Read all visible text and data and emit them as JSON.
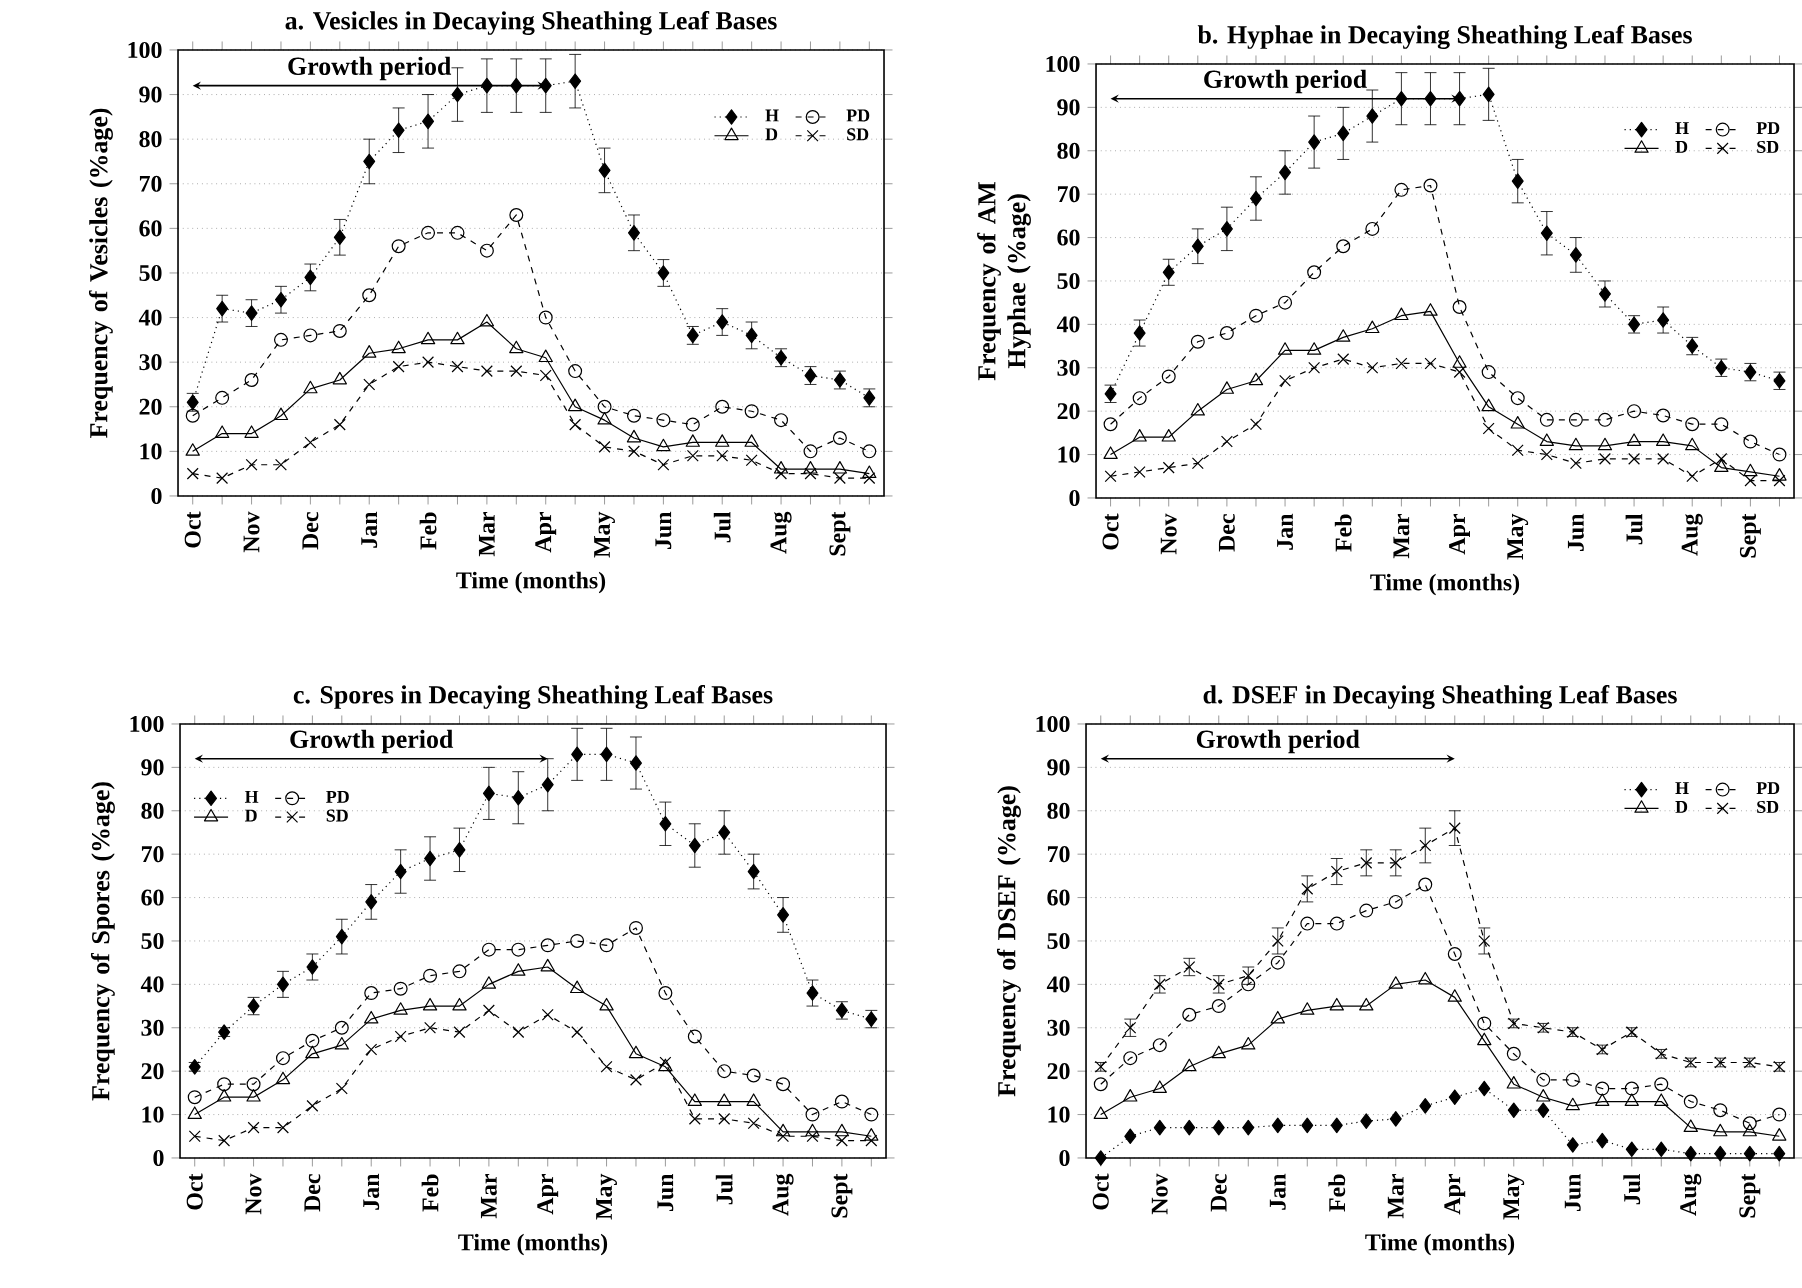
{
  "chart_data": [
    {
      "type": "line",
      "title": "a. Vesicles in Decaying Sheathing Leaf Bases",
      "xlabel": "Time (months)",
      "ylabel": "Frequency of Vesicles (%age)",
      "categories": [
        "Oct",
        null,
        "Nov",
        null,
        "Dec",
        null,
        "Jan",
        null,
        "Feb",
        null,
        "Mar",
        null,
        "Apr",
        null,
        "May",
        null,
        "Jun",
        null,
        "Jul",
        null,
        "Aug",
        null,
        "Sept",
        null
      ],
      "ylim": [
        0,
        100
      ],
      "yticks": [
        0,
        10,
        20,
        30,
        40,
        50,
        60,
        70,
        80,
        90,
        100
      ],
      "grid": "y",
      "legend": "top right",
      "annotations": [
        "Growth period"
      ],
      "series": [
        {
          "name": "H",
          "color": "#000000",
          "marker": "diamond",
          "line_style": "dotted",
          "values": [
            21,
            42,
            41,
            44,
            49,
            58,
            75,
            82,
            84,
            90,
            92,
            92,
            92,
            93,
            73,
            59,
            50,
            36,
            39,
            36,
            31,
            27,
            26,
            22
          ],
          "errors": [
            2,
            3,
            3,
            3,
            3,
            4,
            5,
            5,
            6,
            6,
            6,
            6,
            6,
            6,
            5,
            4,
            3,
            2,
            3,
            3,
            2,
            2,
            2,
            2
          ]
        },
        {
          "name": "PD",
          "color": "#000000",
          "marker": "circle",
          "line_style": "dashed",
          "values": [
            18,
            22,
            26,
            35,
            36,
            37,
            45,
            56,
            59,
            59,
            55,
            63,
            40,
            28,
            20,
            18,
            17,
            16,
            20,
            19,
            17,
            10,
            13,
            10
          ]
        },
        {
          "name": "D",
          "color": "#000000",
          "marker": "triangle",
          "line_style": "solid",
          "values": [
            10,
            14,
            14,
            18,
            24,
            26,
            32,
            33,
            35,
            35,
            39,
            33,
            31,
            20,
            17,
            13,
            11,
            12,
            12,
            12,
            6,
            6,
            6,
            5
          ]
        },
        {
          "name": "SD",
          "color": "#000000",
          "marker": "cross",
          "line_style": "dashed",
          "values": [
            5,
            4,
            7,
            7,
            12,
            16,
            25,
            29,
            30,
            29,
            28,
            28,
            27,
            16,
            11,
            10,
            7,
            9,
            9,
            8,
            5,
            5,
            4,
            4
          ]
        }
      ]
    },
    {
      "type": "line",
      "title": "b. Hyphae in Decaying Sheathing Leaf Bases",
      "xlabel": "Time (months)",
      "ylabel": "Frequency of AM Hyphae (%age)",
      "categories": [
        "Oct",
        null,
        "Nov",
        null,
        "Dec",
        null,
        "Jan",
        null,
        "Feb",
        null,
        "Mar",
        null,
        "Apr",
        null,
        "May",
        null,
        "Jun",
        null,
        "Jul",
        null,
        "Aug",
        null,
        "Sept",
        null
      ],
      "ylim": [
        0,
        100
      ],
      "yticks": [
        0,
        10,
        20,
        30,
        40,
        50,
        60,
        70,
        80,
        90,
        100
      ],
      "grid": "y",
      "legend": "top right",
      "annotations": [
        "Growth period"
      ],
      "series": [
        {
          "name": "H",
          "color": "#000000",
          "marker": "diamond",
          "line_style": "dotted",
          "values": [
            24,
            38,
            52,
            58,
            62,
            69,
            75,
            82,
            84,
            88,
            92,
            92,
            92,
            93,
            73,
            61,
            56,
            47,
            40,
            41,
            35,
            30,
            29,
            27
          ],
          "errors": [
            2,
            3,
            3,
            4,
            5,
            5,
            5,
            6,
            6,
            6,
            6,
            6,
            6,
            6,
            5,
            5,
            4,
            3,
            2,
            3,
            2,
            2,
            2,
            2
          ]
        },
        {
          "name": "PD",
          "color": "#000000",
          "marker": "circle",
          "line_style": "dashed",
          "values": [
            17,
            23,
            28,
            36,
            38,
            42,
            45,
            52,
            58,
            62,
            71,
            72,
            44,
            29,
            23,
            18,
            18,
            18,
            20,
            19,
            17,
            17,
            13,
            10
          ]
        },
        {
          "name": "D",
          "color": "#000000",
          "marker": "triangle",
          "line_style": "solid",
          "values": [
            10,
            14,
            14,
            20,
            25,
            27,
            34,
            34,
            37,
            39,
            42,
            43,
            31,
            21,
            17,
            13,
            12,
            12,
            13,
            13,
            12,
            7,
            6,
            5
          ]
        },
        {
          "name": "SD",
          "color": "#000000",
          "marker": "cross",
          "line_style": "dashed",
          "values": [
            5,
            6,
            7,
            8,
            13,
            17,
            27,
            30,
            32,
            30,
            31,
            31,
            29,
            16,
            11,
            10,
            8,
            9,
            9,
            9,
            5,
            9,
            4,
            4
          ]
        }
      ]
    },
    {
      "type": "line",
      "title": "c. Spores in Decaying Sheathing Leaf Bases",
      "xlabel": "Time (months)",
      "ylabel": "Frequency of Spores (%age)",
      "categories": [
        "Oct",
        null,
        "Nov",
        null,
        "Dec",
        null,
        "Jan",
        null,
        "Feb",
        null,
        "Mar",
        null,
        "Apr",
        null,
        "May",
        null,
        "Jun",
        null,
        "Jul",
        null,
        "Aug",
        null,
        "Sept",
        null
      ],
      "ylim": [
        0,
        100
      ],
      "yticks": [
        0,
        10,
        20,
        30,
        40,
        50,
        60,
        70,
        80,
        90,
        100
      ],
      "grid": "y",
      "legend": "top left",
      "annotations": [
        "Growth period"
      ],
      "series": [
        {
          "name": "H",
          "color": "#000000",
          "marker": "diamond",
          "line_style": "dotted",
          "values": [
            21,
            29,
            35,
            40,
            44,
            51,
            59,
            66,
            69,
            71,
            84,
            83,
            86,
            93,
            93,
            91,
            77,
            72,
            75,
            66,
            56,
            38,
            34,
            32
          ],
          "errors": [
            1,
            1,
            2,
            3,
            3,
            4,
            4,
            5,
            5,
            5,
            6,
            6,
            6,
            6,
            6,
            6,
            5,
            5,
            5,
            4,
            4,
            3,
            2,
            2
          ]
        },
        {
          "name": "PD",
          "color": "#000000",
          "marker": "circle",
          "line_style": "dashed",
          "values": [
            14,
            17,
            17,
            23,
            27,
            30,
            38,
            39,
            42,
            43,
            48,
            48,
            49,
            50,
            49,
            53,
            38,
            28,
            20,
            19,
            17,
            10,
            13,
            10
          ]
        },
        {
          "name": "D",
          "color": "#000000",
          "marker": "triangle",
          "line_style": "solid",
          "values": [
            10,
            14,
            14,
            18,
            24,
            26,
            32,
            34,
            35,
            35,
            40,
            43,
            44,
            39,
            35,
            24,
            21,
            13,
            13,
            13,
            6,
            6,
            6,
            5
          ]
        },
        {
          "name": "SD",
          "color": "#000000",
          "marker": "cross",
          "line_style": "dashed",
          "values": [
            5,
            4,
            7,
            7,
            12,
            16,
            25,
            28,
            30,
            29,
            34,
            29,
            33,
            29,
            21,
            18,
            22,
            9,
            9,
            8,
            5,
            5,
            4,
            4
          ]
        }
      ]
    },
    {
      "type": "line",
      "title": "d. DSEF in Decaying Sheathing Leaf Bases",
      "xlabel": "Time (months)",
      "ylabel": "Frequency of DSEF (%age)",
      "categories": [
        "Oct",
        null,
        "Nov",
        null,
        "Dec",
        null,
        "Jan",
        null,
        "Feb",
        null,
        "Mar",
        null,
        "Apr",
        null,
        "May",
        null,
        "Jun",
        null,
        "Jul",
        null,
        "Aug",
        null,
        "Sept",
        null
      ],
      "ylim": [
        0,
        100
      ],
      "yticks": [
        0,
        10,
        20,
        30,
        40,
        50,
        60,
        70,
        80,
        90,
        100
      ],
      "grid": "y",
      "legend": "top right",
      "annotations": [
        "Growth period"
      ],
      "series": [
        {
          "name": "H",
          "color": "#000000",
          "marker": "diamond",
          "line_style": "dotted",
          "values": [
            0,
            5,
            7,
            7,
            7,
            7,
            7.5,
            7.5,
            7.5,
            8.5,
            9,
            12,
            14,
            16,
            11,
            11,
            3,
            4,
            2,
            2,
            1,
            1,
            1,
            1
          ]
        },
        {
          "name": "PD",
          "color": "#000000",
          "marker": "circle",
          "line_style": "dashed",
          "values": [
            17,
            23,
            26,
            33,
            35,
            40,
            45,
            54,
            54,
            57,
            59,
            63,
            47,
            31,
            24,
            18,
            18,
            16,
            16,
            17,
            13,
            11,
            8,
            10
          ]
        },
        {
          "name": "D",
          "color": "#000000",
          "marker": "triangle",
          "line_style": "solid",
          "values": [
            10,
            14,
            16,
            21,
            24,
            26,
            32,
            34,
            35,
            35,
            40,
            41,
            37,
            27,
            17,
            14,
            12,
            13,
            13,
            13,
            7,
            6,
            6,
            5
          ]
        },
        {
          "name": "SD",
          "color": "#000000",
          "marker": "cross",
          "line_style": "dashed",
          "values": [
            21,
            30,
            40,
            44,
            40,
            42,
            50,
            62,
            66,
            68,
            68,
            72,
            76,
            50,
            31,
            30,
            29,
            25,
            29,
            24,
            22,
            22,
            22,
            21
          ],
          "errors": [
            1,
            2,
            2,
            2,
            2,
            2,
            3,
            3,
            3,
            3,
            3,
            4,
            4,
            3,
            1,
            1,
            1,
            1,
            1,
            1,
            1,
            1,
            1,
            1
          ]
        }
      ]
    }
  ]
}
